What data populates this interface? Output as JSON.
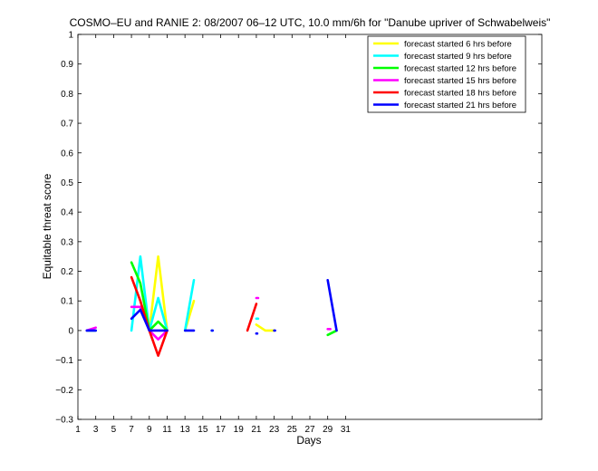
{
  "chart_data": {
    "type": "line",
    "title": "COSMO–EU and RANIE 2: 08/2007 06–12 UTC, 10.0 mm/6h for \"Danube upriver of Schwabelweis\"",
    "xlabel": "Days",
    "ylabel": "Equitable threat score",
    "xlim": [
      1,
      53
    ],
    "ylim": [
      -0.3,
      1
    ],
    "xticks": [
      "1",
      "3",
      "5",
      "7",
      "9",
      "11",
      "13",
      "15",
      "17",
      "19",
      "21",
      "23",
      "25",
      "27",
      "29",
      "31"
    ],
    "yticks": [
      "−0.3",
      "−0.2",
      "−0.1",
      "0",
      "0.1",
      "0.2",
      "0.3",
      "0.4",
      "0.5",
      "0.6",
      "0.7",
      "0.8",
      "0.9",
      "1"
    ],
    "legend_position": "top-right",
    "grid": false,
    "series": [
      {
        "name": "forecast started 6 hrs before",
        "color": "#ffff00",
        "segments": [
          [
            [
              2,
              0
            ],
            [
              3,
              0
            ]
          ],
          [
            [
              9,
              0
            ],
            [
              10,
              0.25
            ],
            [
              11,
              0
            ]
          ],
          [
            [
              13,
              0
            ],
            [
              14,
              0.1
            ]
          ],
          [
            [
              21,
              0.02
            ],
            [
              22,
              0
            ],
            [
              23,
              0
            ]
          ]
        ]
      },
      {
        "name": "forecast started 9 hrs before",
        "color": "#00ffff",
        "segments": [
          [
            [
              2,
              0
            ],
            [
              3,
              0
            ]
          ],
          [
            [
              7,
              0
            ],
            [
              8,
              0.25
            ],
            [
              9,
              0
            ],
            [
              10,
              0.11
            ],
            [
              11,
              0
            ]
          ],
          [
            [
              13,
              0
            ],
            [
              14,
              0.17
            ]
          ],
          [
            [
              16,
              0
            ],
            [
              16.1,
              0
            ]
          ],
          [
            [
              21,
              0.04
            ],
            [
              21.2,
              0.04
            ]
          ]
        ]
      },
      {
        "name": "forecast started 12 hrs before",
        "color": "#00ff00",
        "segments": [
          [
            [
              7,
              0.23
            ],
            [
              8,
              0.16
            ],
            [
              9,
              0
            ],
            [
              10,
              0.03
            ],
            [
              11,
              0
            ]
          ],
          [
            [
              29,
              -0.015
            ],
            [
              30,
              0
            ]
          ]
        ]
      },
      {
        "name": "forecast started 15 hrs before",
        "color": "#ff00ff",
        "segments": [
          [
            [
              2,
              0
            ],
            [
              3,
              0.01
            ]
          ],
          [
            [
              7,
              0.08
            ],
            [
              8,
              0.08
            ],
            [
              9,
              0
            ],
            [
              10,
              -0.03
            ],
            [
              11,
              0
            ]
          ],
          [
            [
              21,
              0.11
            ],
            [
              21.2,
              0.11
            ]
          ],
          [
            [
              29,
              0.005
            ],
            [
              29.3,
              0.005
            ]
          ]
        ]
      },
      {
        "name": "forecast started 18 hrs before",
        "color": "#ff0000",
        "segments": [
          [
            [
              7,
              0.18
            ],
            [
              8,
              0.1
            ],
            [
              9,
              0
            ],
            [
              10,
              -0.085
            ],
            [
              11,
              0
            ]
          ],
          [
            [
              20,
              0
            ],
            [
              21,
              0.09
            ]
          ]
        ]
      },
      {
        "name": "forecast started 21 hrs before",
        "color": "#0000ff",
        "segments": [
          [
            [
              2,
              0
            ],
            [
              3,
              0
            ]
          ],
          [
            [
              7,
              0.04
            ],
            [
              8,
              0.07
            ],
            [
              9,
              0
            ],
            [
              10,
              0
            ],
            [
              11,
              0
            ]
          ],
          [
            [
              13,
              0
            ],
            [
              14,
              0
            ]
          ],
          [
            [
              16,
              0
            ],
            [
              16.1,
              0
            ]
          ],
          [
            [
              21,
              -0.01
            ],
            [
              21.1,
              -0.01
            ]
          ],
          [
            [
              23,
              0
            ],
            [
              23.1,
              0
            ]
          ],
          [
            [
              29,
              0.17
            ],
            [
              30,
              0
            ]
          ]
        ]
      }
    ]
  }
}
